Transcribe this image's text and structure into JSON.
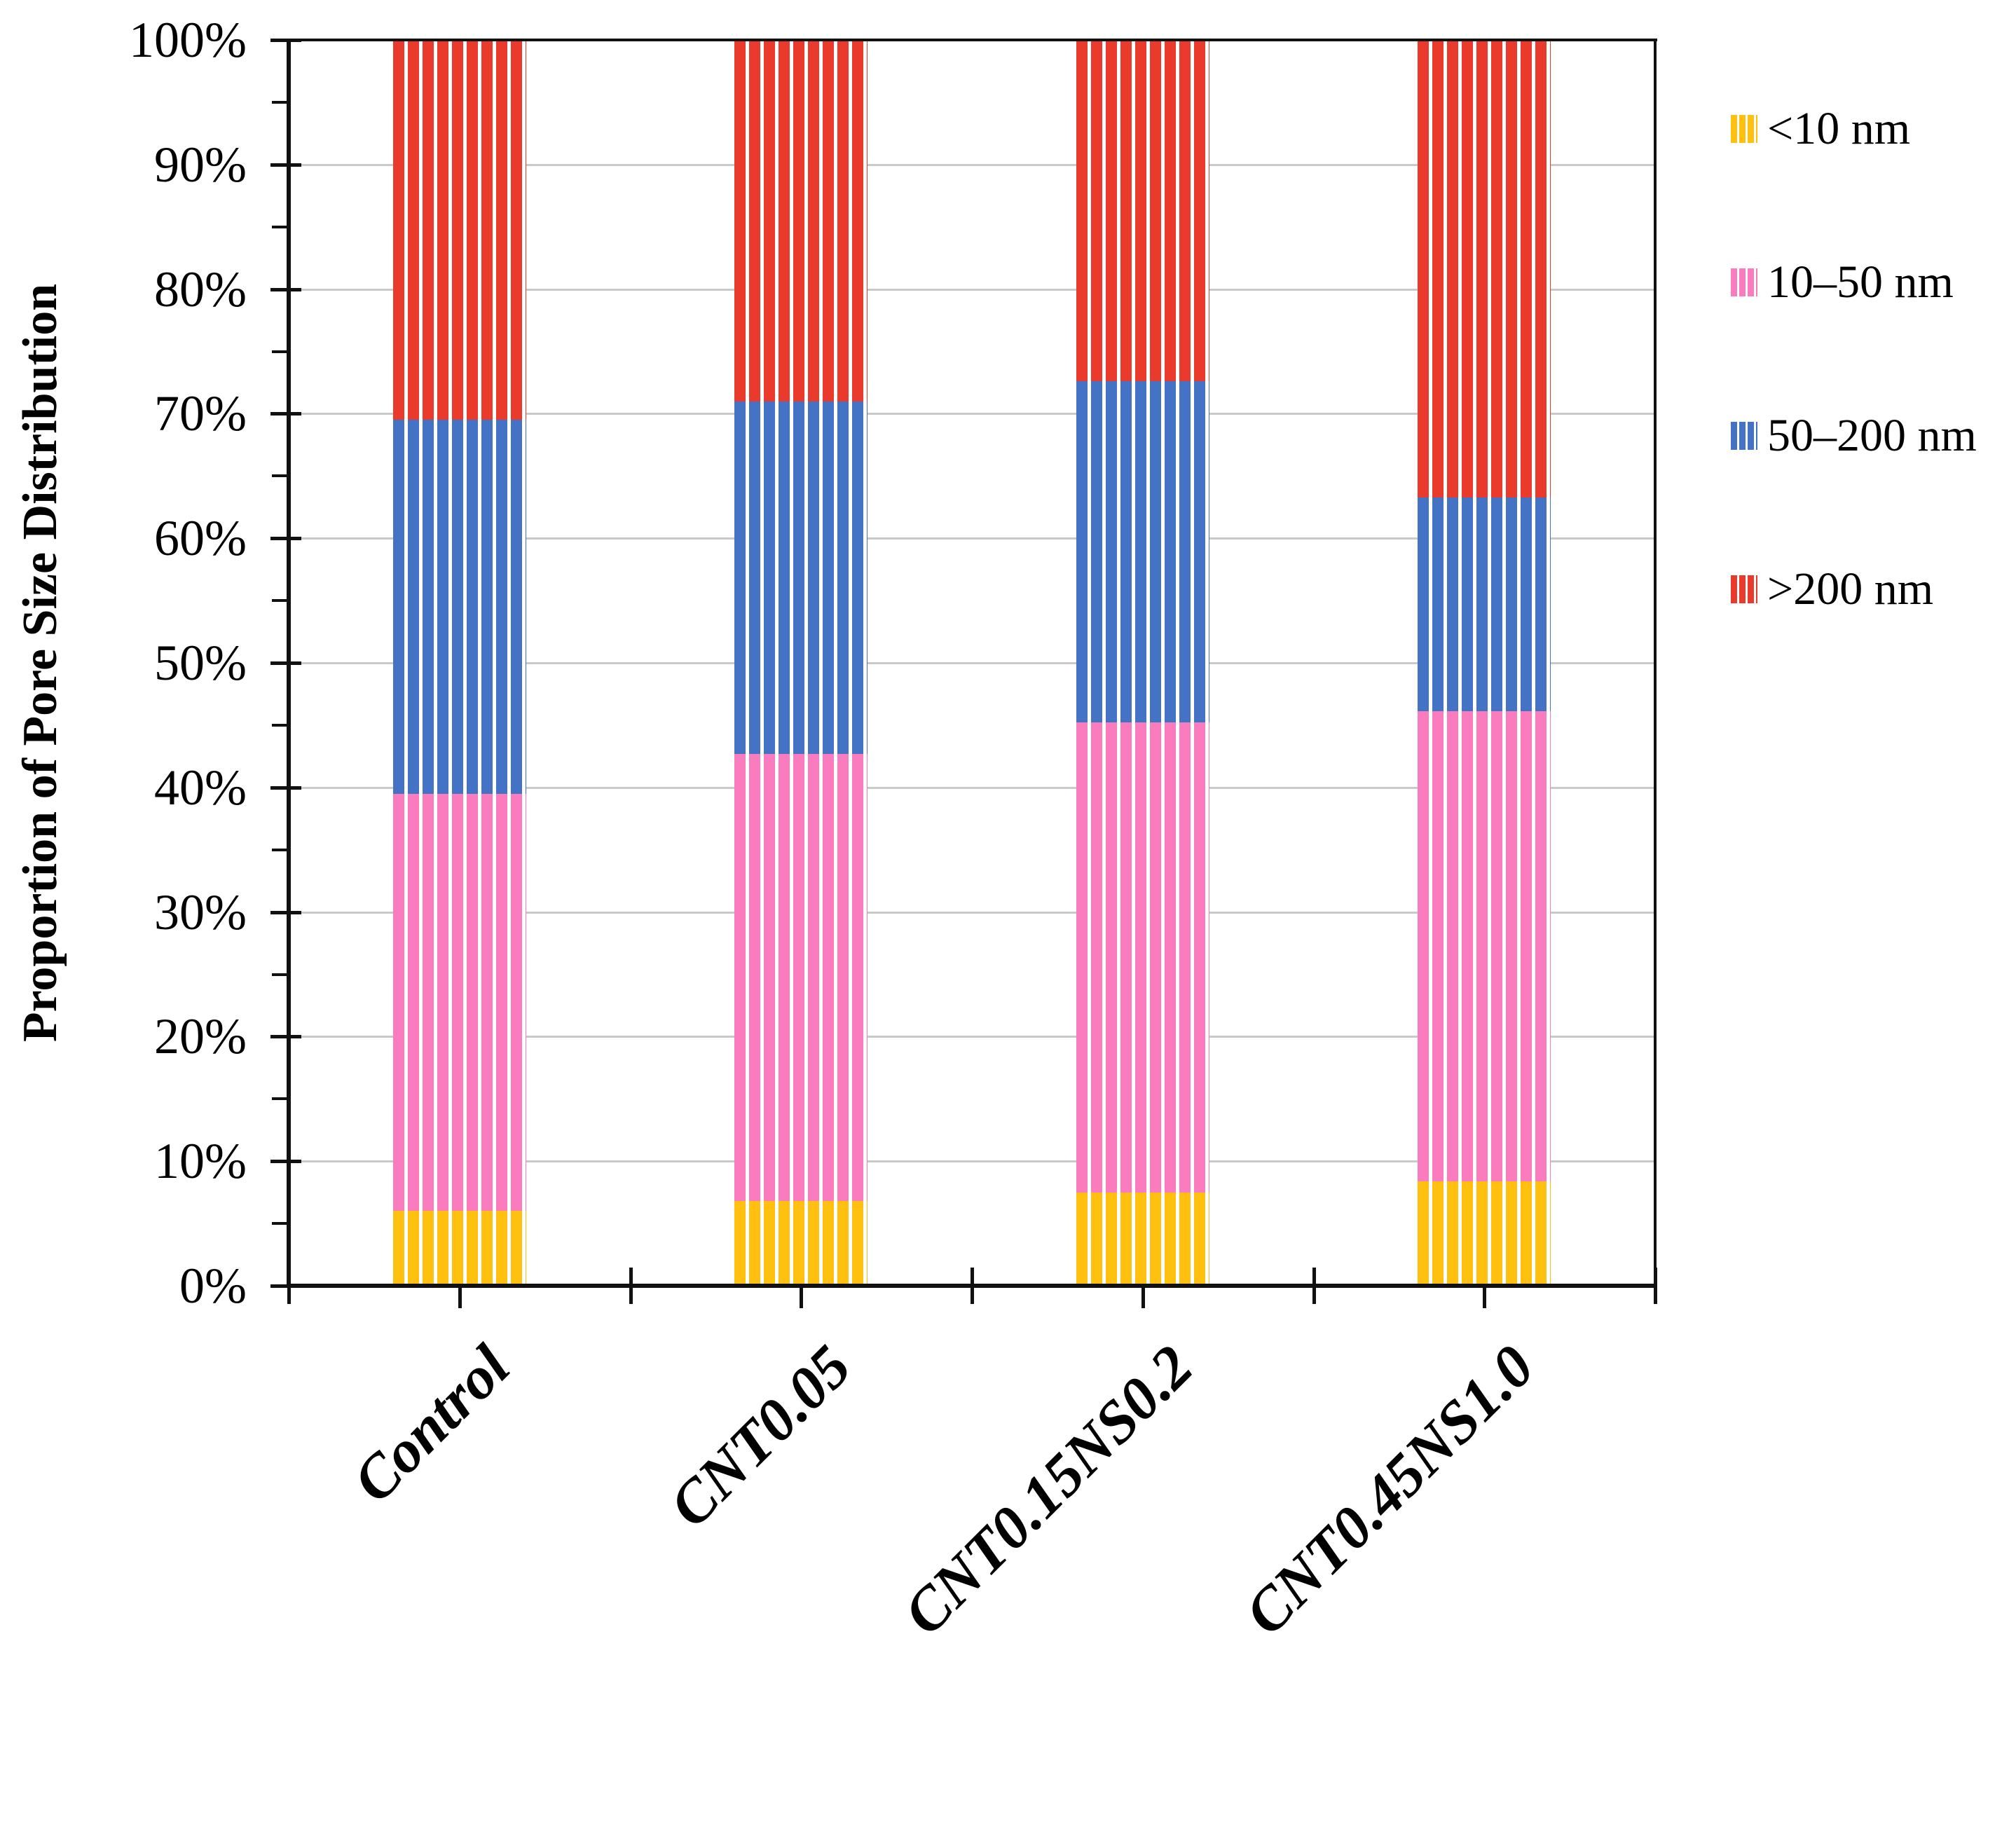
{
  "chart_data": {
    "type": "bar",
    "stacked": true,
    "orientation": "vertical",
    "ylabel": "Proportion of Pore Size Distribution",
    "xlabel": "",
    "title": "",
    "categories": [
      "Control",
      "CNT0.05",
      "CNT0.15NS0.2",
      "CNT0.45NS1.0"
    ],
    "series": [
      {
        "name": "<10 nm",
        "color": "#FFC010",
        "values": [
          6.0,
          6.8,
          7.5,
          8.4
        ]
      },
      {
        "name": "10–50 nm",
        "color": "#FA7CBE",
        "values": [
          33.5,
          35.9,
          37.7,
          37.7
        ]
      },
      {
        "name": "50–200 nm",
        "color": "#4472C4",
        "values": [
          30.0,
          28.3,
          27.4,
          17.2
        ]
      },
      {
        "name": ">200 nm",
        "color": "#E93A2B",
        "values": [
          30.5,
          29.0,
          27.4,
          36.7
        ]
      }
    ],
    "cumulative_tops_percent": {
      "Control": [
        6.0,
        39.5,
        69.5,
        100
      ],
      "CNT0.05": [
        6.8,
        42.7,
        71.0,
        100
      ],
      "CNT0.15NS0.2": [
        7.5,
        45.2,
        72.6,
        100
      ],
      "CNT0.45NS1.0": [
        8.4,
        46.1,
        63.3,
        100
      ]
    },
    "ylim": [
      0,
      100
    ],
    "ytick_labels": [
      "0%",
      "10%",
      "20%",
      "30%",
      "40%",
      "50%",
      "60%",
      "70%",
      "80%",
      "90%",
      "100%"
    ],
    "ytick_minor_interval_percent": 5,
    "grid": "horizontal-major",
    "grid_color": "#c9c9c9",
    "bar_fill_style": "vertical-white-stripes",
    "legend_position": "right-outside-top",
    "legend_entries": [
      "<10 nm",
      "10–50 nm",
      "50–200 nm",
      ">200 nm"
    ]
  }
}
